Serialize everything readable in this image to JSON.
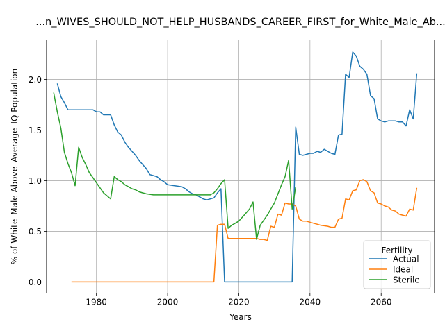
{
  "chart_data": {
    "type": "line",
    "title": "...n_WIVES_SHOULD_NOT_HELP_HUSBANDS_CAREER_FIRST_for_White_Male_Ab...",
    "xlabel": "Years",
    "ylabel": "% of White_Male Above_Average_IQ Population",
    "xlim": [
      1966,
      2075
    ],
    "ylim": [
      -0.11,
      2.39
    ],
    "xticks": [
      1980,
      2000,
      2020,
      2040,
      2060
    ],
    "yticks": [
      0.0,
      0.5,
      1.0,
      1.5,
      2.0
    ],
    "xtick_labels": [
      "1980",
      "2000",
      "2020",
      "2040",
      "2060"
    ],
    "ytick_labels": [
      "0.0",
      "0.5",
      "1.0",
      "1.5",
      "2.0"
    ],
    "grid": true,
    "legend": {
      "title": "Fertility",
      "position": "lower right"
    },
    "series": [
      {
        "name": "Actual",
        "color": "#1f77b4",
        "x": [
          1969,
          1970,
          1971,
          1972,
          1973,
          1974,
          1975,
          1976,
          1977,
          1978,
          1979,
          1980,
          1981,
          1982,
          1983,
          1984,
          1985,
          1986,
          1987,
          1988,
          1989,
          1990,
          1991,
          1992,
          1993,
          1994,
          1995,
          1996,
          1997,
          1998,
          1999,
          2000,
          2001,
          2002,
          2003,
          2004,
          2005,
          2006,
          2007,
          2008,
          2009,
          2010,
          2011,
          2012,
          2013,
          2014,
          2015,
          2016,
          2017,
          2018,
          2019,
          2020,
          2021,
          2022,
          2023,
          2024,
          2025,
          2026,
          2027,
          2028,
          2029,
          2030,
          2031,
          2032,
          2033,
          2034,
          2035,
          2036,
          2037,
          2038,
          2039,
          2040,
          2041,
          2042,
          2043,
          2044,
          2045,
          2046,
          2047,
          2048,
          2049,
          2050,
          2051,
          2052,
          2053,
          2054,
          2055,
          2056,
          2057,
          2058,
          2059,
          2060,
          2061,
          2062,
          2063,
          2064,
          2065,
          2066,
          2067,
          2068,
          2069,
          2070
        ],
        "values": [
          1.96,
          1.83,
          1.77,
          1.7,
          1.7,
          1.7,
          1.7,
          1.7,
          1.7,
          1.7,
          1.7,
          1.68,
          1.68,
          1.65,
          1.65,
          1.65,
          1.55,
          1.48,
          1.45,
          1.38,
          1.33,
          1.29,
          1.25,
          1.2,
          1.16,
          1.12,
          1.06,
          1.05,
          1.04,
          1.01,
          0.99,
          0.96,
          0.955,
          0.95,
          0.945,
          0.94,
          0.92,
          0.89,
          0.87,
          0.86,
          0.84,
          0.82,
          0.81,
          0.82,
          0.83,
          0.88,
          0.92,
          0.0,
          0.0,
          0.0,
          0.0,
          0.0,
          0.0,
          0.0,
          0.0,
          0.0,
          0.0,
          0.0,
          0.0,
          0.0,
          0.0,
          0.0,
          0.0,
          0.0,
          0.0,
          0.0,
          0.0,
          1.53,
          1.26,
          1.25,
          1.26,
          1.27,
          1.27,
          1.29,
          1.28,
          1.31,
          1.29,
          1.27,
          1.26,
          1.45,
          1.46,
          2.05,
          2.02,
          2.27,
          2.23,
          2.13,
          2.1,
          2.05,
          1.84,
          1.81,
          1.61,
          1.59,
          1.58,
          1.59,
          1.59,
          1.59,
          1.58,
          1.58,
          1.54,
          1.7,
          1.61,
          2.06
        ]
      },
      {
        "name": "Ideal",
        "color": "#ff7f0e",
        "x": [
          1973,
          1974,
          1975,
          1976,
          1977,
          1978,
          1979,
          1980,
          1981,
          1982,
          1983,
          1984,
          1985,
          1986,
          1987,
          1988,
          1989,
          1990,
          1991,
          1992,
          1993,
          1994,
          1995,
          1996,
          1997,
          1998,
          1999,
          2000,
          2001,
          2002,
          2003,
          2004,
          2005,
          2006,
          2007,
          2008,
          2009,
          2010,
          2011,
          2012,
          2013,
          2014,
          2015,
          2016,
          2017,
          2018,
          2019,
          2020,
          2021,
          2022,
          2023,
          2024,
          2025,
          2026,
          2027,
          2028,
          2029,
          2030,
          2031,
          2032,
          2033,
          2034,
          2035,
          2036,
          2037,
          2038,
          2039,
          2040,
          2041,
          2042,
          2043,
          2044,
          2045,
          2046,
          2047,
          2048,
          2049,
          2050,
          2051,
          2052,
          2053,
          2054,
          2055,
          2056,
          2057,
          2058,
          2059,
          2060,
          2061,
          2062,
          2063,
          2064,
          2065,
          2066,
          2067,
          2068,
          2069,
          2070
        ],
        "values": [
          0,
          0,
          0,
          0,
          0,
          0,
          0,
          0,
          0,
          0,
          0,
          0,
          0,
          0,
          0,
          0,
          0,
          0,
          0,
          0,
          0,
          0,
          0,
          0,
          0,
          0,
          0,
          0,
          0,
          0,
          0,
          0,
          0,
          0,
          0,
          0,
          0,
          0,
          0,
          0,
          0,
          0.56,
          0.57,
          0.57,
          0.43,
          0.43,
          0.43,
          0.43,
          0.43,
          0.43,
          0.43,
          0.43,
          0.43,
          0.42,
          0.42,
          0.41,
          0.55,
          0.54,
          0.67,
          0.66,
          0.78,
          0.77,
          0.77,
          0.75,
          0.62,
          0.6,
          0.6,
          0.59,
          0.58,
          0.57,
          0.56,
          0.555,
          0.55,
          0.54,
          0.54,
          0.62,
          0.63,
          0.82,
          0.81,
          0.9,
          0.91,
          1.0,
          1.01,
          0.99,
          0.9,
          0.88,
          0.78,
          0.77,
          0.75,
          0.74,
          0.71,
          0.7,
          0.67,
          0.66,
          0.65,
          0.72,
          0.71,
          0.93
        ]
      },
      {
        "name": "Sterile",
        "color": "#2ca02c",
        "x": [
          1968,
          1969,
          1970,
          1971,
          1972,
          1973,
          1974,
          1975,
          1976,
          1977,
          1978,
          1979,
          1980,
          1981,
          1982,
          1983,
          1984,
          1985,
          1986,
          1987,
          1988,
          1989,
          1990,
          1991,
          1992,
          1993,
          1994,
          1995,
          1996,
          1997,
          1998,
          1999,
          2000,
          2001,
          2002,
          2003,
          2004,
          2005,
          2006,
          2007,
          2008,
          2009,
          2010,
          2011,
          2012,
          2013,
          2014,
          2015,
          2016,
          2017,
          2018,
          2019,
          2020,
          2021,
          2022,
          2023,
          2024,
          2025,
          2026,
          2027,
          2028,
          2029,
          2030,
          2031,
          2032,
          2033,
          2034,
          2035,
          2036
        ],
        "values": [
          1.87,
          1.68,
          1.52,
          1.28,
          1.17,
          1.08,
          0.95,
          1.33,
          1.23,
          1.16,
          1.08,
          1.03,
          0.98,
          0.93,
          0.88,
          0.85,
          0.82,
          1.04,
          1.01,
          0.99,
          0.96,
          0.94,
          0.92,
          0.91,
          0.89,
          0.88,
          0.87,
          0.865,
          0.86,
          0.86,
          0.86,
          0.86,
          0.86,
          0.86,
          0.86,
          0.86,
          0.86,
          0.86,
          0.86,
          0.86,
          0.86,
          0.86,
          0.86,
          0.86,
          0.86,
          0.88,
          0.92,
          0.97,
          1.01,
          0.53,
          0.56,
          0.58,
          0.6,
          0.64,
          0.68,
          0.72,
          0.79,
          0.42,
          0.56,
          0.61,
          0.66,
          0.72,
          0.78,
          0.87,
          0.96,
          1.04,
          1.2,
          0.72,
          0.94
        ]
      }
    ]
  }
}
